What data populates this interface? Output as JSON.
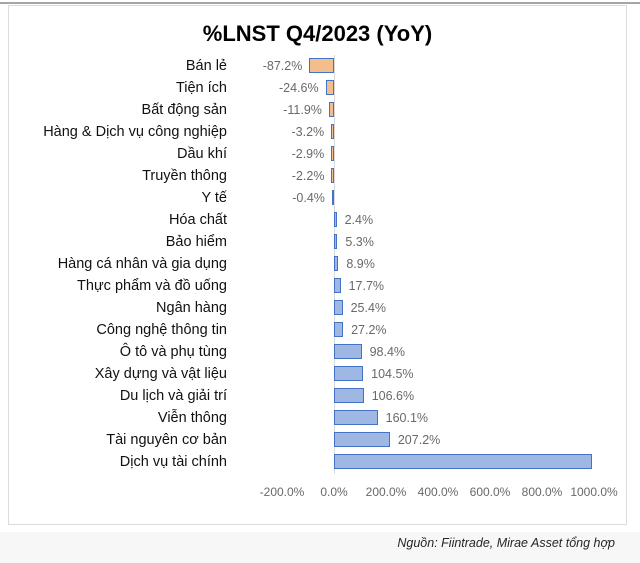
{
  "page": {
    "source_note": "Nguồn: Fiintrade, Mirae Asset tổng hợp"
  },
  "chart_data": {
    "type": "bar",
    "orientation": "horizontal",
    "title": "%LNST Q4/2023 (YoY)",
    "categories": [
      "Bán lẻ",
      "Tiện ích",
      "Bất động sản",
      "Hàng & Dịch vụ công nghiệp",
      "Dầu khí",
      "Truyền thông",
      "Y tế",
      "Hóa chất",
      "Bảo hiểm",
      "Hàng cá nhân và gia dụng",
      "Thực phẩm và đồ uống",
      "Ngân hàng",
      "Công nghệ thông tin",
      "Ô tô và phụ tùng",
      "Xây dựng và vật liệu",
      "Du lịch và giải trí",
      "Viễn thông",
      "Tài nguyên cơ bản",
      "Dịch vụ tài chính"
    ],
    "values": [
      -87.2,
      -24.6,
      -11.9,
      -3.2,
      -2.9,
      -2.2,
      -0.4,
      2.4,
      5.3,
      8.9,
      17.7,
      25.4,
      27.2,
      98.4,
      104.5,
      106.6,
      160.1,
      207.2,
      985
    ],
    "data_labels": [
      "-87.2%",
      "-24.6%",
      "-11.9%",
      "-3.2%",
      "-2.9%",
      "-2.2%",
      "-0.4%",
      "2.4%",
      "5.3%",
      "8.9%",
      "17.7%",
      "25.4%",
      "27.2%",
      "98.4%",
      "104.5%",
      "106.6%",
      "160.1%",
      "207.2%",
      ""
    ],
    "xlabel": "",
    "ylabel": "",
    "xlim": [
      -200,
      1000
    ],
    "x_tick_values": [
      -200,
      0,
      200,
      400,
      600,
      800,
      1000
    ],
    "x_tick_labels": [
      "-200.0%",
      "0.0%",
      "200.0%",
      "400.0%",
      "600.0%",
      "800.0%",
      "1000.0%"
    ],
    "grid": false,
    "legend": "none",
    "colors": {
      "positive_fill": "#9FB7E3",
      "negative_fill": "#F4BE8C",
      "bar_border": "#4472C4",
      "label_gray": "#696969",
      "axis_line": "#d9d9d9"
    }
  }
}
